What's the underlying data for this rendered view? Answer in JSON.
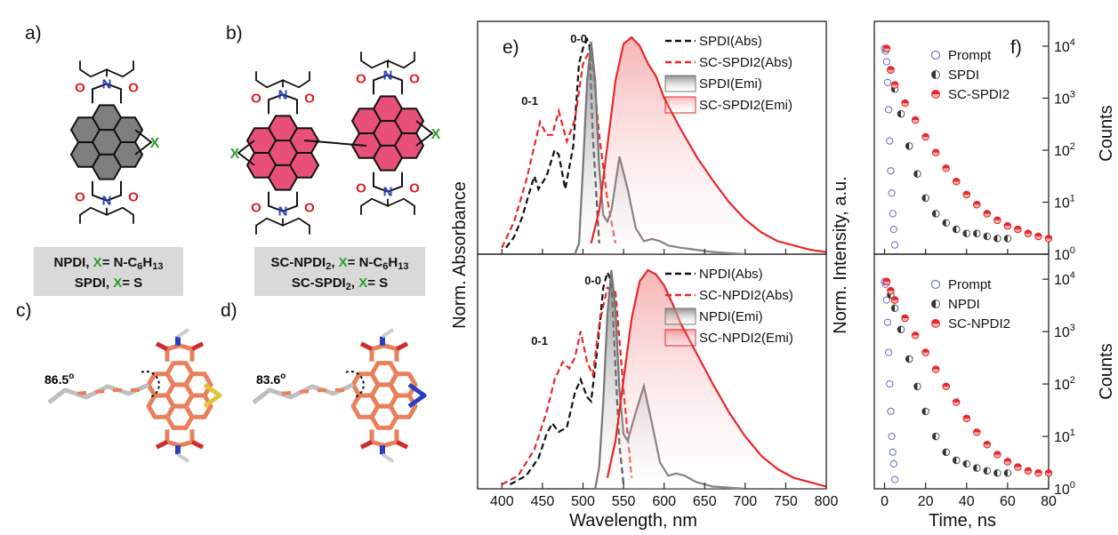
{
  "panel_labels": {
    "a": "a)",
    "b": "b)",
    "c": "c)",
    "d": "d)",
    "e": "e)",
    "f": "f)"
  },
  "structure_a": {
    "caption_1": "NPDI, X= N-C6H13",
    "caption_2": "SPDI, X= S",
    "x_label": "X"
  },
  "structure_b": {
    "caption_1": "SC-NPDI2, X= N-C6H13",
    "caption_2": "SC-SPDI2, X= S",
    "x_label": "X"
  },
  "model_c": {
    "angle": "86.5o"
  },
  "model_d": {
    "angle": "83.6o"
  },
  "colors": {
    "black": "#111111",
    "red": "#e8272b",
    "gray": "#8c8c8c",
    "bond_orange": "#e8805c",
    "core_gray": "#7f7f7f",
    "core_pink": "#e8507a",
    "nitrogen": "#2a3fbf",
    "oxygen": "#e01b1b",
    "x_green": "#2aa02a",
    "sulfur": "#e0c43a",
    "prompt_blue": "#6f78c9",
    "caption_bg": "#d9d9d9"
  },
  "chart_data": [
    {
      "type": "line",
      "panel": "e (top)",
      "xlim": [
        370,
        800
      ],
      "xlabel": "Wavelength, nm",
      "ylabel_left": "Norm. Absorbance",
      "ylabel_right": "Norm. Intensity, a.u.",
      "peak_labels": [
        "0-0",
        "0-1"
      ],
      "series": [
        {
          "name": "SPDI(Abs)",
          "style": "dash",
          "color": "#111111",
          "x": [
            405,
            415,
            425,
            435,
            440,
            445,
            455,
            465,
            470,
            478,
            488,
            495,
            500,
            505,
            508,
            512,
            516,
            520
          ],
          "y": [
            0.03,
            0.08,
            0.17,
            0.3,
            0.36,
            0.3,
            0.36,
            0.48,
            0.46,
            0.3,
            0.5,
            0.88,
            0.95,
            0.99,
            0.96,
            0.55,
            0.3,
            0.05
          ]
        },
        {
          "name": "SC-SPDI2(Abs)",
          "style": "dash",
          "color": "#e8272b",
          "x": [
            400,
            415,
            430,
            440,
            447,
            455,
            462,
            470,
            480,
            490,
            500,
            510,
            520,
            530,
            540
          ],
          "y": [
            0.03,
            0.15,
            0.34,
            0.5,
            0.61,
            0.55,
            0.55,
            0.66,
            0.52,
            0.62,
            0.88,
            0.95,
            0.55,
            0.25,
            0.05
          ]
        },
        {
          "name": "SPDI(Emi)",
          "style": "fill-gray",
          "color": "#8c8c8c",
          "x": [
            490,
            495,
            500,
            505,
            510,
            515,
            520,
            525,
            530,
            535,
            545,
            555,
            565,
            575,
            585,
            595,
            605,
            620,
            640,
            660,
            700
          ],
          "y": [
            0,
            0.05,
            0.4,
            0.8,
            0.98,
            0.8,
            0.4,
            0.18,
            0.15,
            0.2,
            0.45,
            0.3,
            0.12,
            0.06,
            0.07,
            0.06,
            0.04,
            0.03,
            0.02,
            0.01,
            0.0
          ]
        },
        {
          "name": "SC-SPDI2(Emi)",
          "style": "fill-red",
          "color": "#e8272b",
          "x": [
            510,
            520,
            530,
            540,
            550,
            560,
            570,
            580,
            590,
            600,
            620,
            640,
            660,
            680,
            700,
            720,
            740,
            760,
            780,
            800
          ],
          "y": [
            0.05,
            0.2,
            0.5,
            0.8,
            0.97,
            1.0,
            0.96,
            0.88,
            0.82,
            0.72,
            0.58,
            0.45,
            0.34,
            0.24,
            0.16,
            0.1,
            0.06,
            0.04,
            0.02,
            0.01
          ]
        }
      ]
    },
    {
      "type": "line",
      "panel": "e (bottom)",
      "xlim": [
        370,
        800
      ],
      "xticks": [
        400,
        450,
        500,
        550,
        600,
        650,
        700,
        750,
        800
      ],
      "xlabel": "Wavelength, nm",
      "peak_labels": [
        "0-0",
        "0-1"
      ],
      "series": [
        {
          "name": "NPDI(Abs)",
          "style": "dash",
          "color": "#111111",
          "x": [
            410,
            430,
            445,
            455,
            462,
            470,
            480,
            490,
            497,
            505,
            510,
            518,
            525,
            530,
            535,
            540,
            545,
            550
          ],
          "y": [
            0.02,
            0.06,
            0.14,
            0.25,
            0.3,
            0.26,
            0.28,
            0.44,
            0.5,
            0.42,
            0.4,
            0.65,
            0.92,
            0.99,
            0.95,
            0.55,
            0.2,
            0.02
          ]
        },
        {
          "name": "SC-NPDI2(Abs)",
          "style": "dash",
          "color": "#e8272b",
          "x": [
            400,
            420,
            440,
            455,
            465,
            475,
            483,
            490,
            497,
            505,
            512,
            520,
            530,
            540,
            550,
            560
          ],
          "y": [
            0.02,
            0.06,
            0.18,
            0.35,
            0.5,
            0.58,
            0.55,
            0.6,
            0.72,
            0.58,
            0.52,
            0.75,
            0.92,
            0.9,
            0.45,
            0.05
          ]
        },
        {
          "name": "NPDI(Emi)",
          "style": "fill-gray",
          "color": "#8c8c8c",
          "x": [
            515,
            520,
            525,
            530,
            535,
            540,
            545,
            550,
            555,
            565,
            575,
            585,
            595,
            605,
            615,
            625,
            640,
            660,
            700
          ],
          "y": [
            0,
            0.1,
            0.4,
            0.8,
            1.0,
            0.82,
            0.45,
            0.25,
            0.22,
            0.35,
            0.47,
            0.3,
            0.12,
            0.06,
            0.07,
            0.06,
            0.03,
            0.01,
            0.0
          ]
        },
        {
          "name": "SC-NPDI2(Emi)",
          "style": "fill-red",
          "color": "#e8272b",
          "x": [
            530,
            540,
            550,
            560,
            570,
            580,
            590,
            600,
            610,
            620,
            640,
            660,
            680,
            700,
            720,
            740,
            760,
            780,
            800
          ],
          "y": [
            0.05,
            0.22,
            0.5,
            0.78,
            0.95,
            1.0,
            0.98,
            0.93,
            0.85,
            0.76,
            0.62,
            0.48,
            0.35,
            0.24,
            0.15,
            0.09,
            0.05,
            0.03,
            0.01
          ]
        }
      ]
    },
    {
      "type": "scatter",
      "panel": "f (top)",
      "xlim": [
        -5,
        80
      ],
      "ylim": [
        1,
        30000
      ],
      "yscale": "log",
      "yticks": [
        "10^0",
        "10^1",
        "10^2",
        "10^3",
        "10^4"
      ],
      "ylabel": "Counts",
      "series": [
        {
          "name": "Prompt",
          "marker": "open-circle",
          "color": "#6f78c9",
          "x": [
            0,
            0.5,
            1,
            1.5,
            2,
            2.5,
            3,
            3.5,
            4,
            4.5,
            5
          ],
          "y": [
            9000,
            8000,
            5000,
            2000,
            600,
            150,
            40,
            15,
            6,
            3,
            1.5
          ]
        },
        {
          "name": "SPDI",
          "marker": "half-filled",
          "color": "#333333",
          "x": [
            1,
            3,
            5,
            8,
            12,
            16,
            20,
            25,
            30,
            35,
            40,
            45,
            50,
            55,
            60
          ],
          "y": [
            9000,
            3500,
            1500,
            500,
            120,
            35,
            12,
            6,
            4,
            3,
            2.5,
            2.5,
            2.2,
            2.0,
            2.0
          ]
        },
        {
          "name": "SC-SPDI2",
          "marker": "half-red",
          "color": "#e8272b",
          "x": [
            1,
            3,
            5,
            10,
            15,
            20,
            25,
            30,
            35,
            40,
            45,
            50,
            55,
            60,
            65,
            70,
            75,
            80
          ],
          "y": [
            9000,
            3500,
            1800,
            800,
            380,
            180,
            90,
            45,
            25,
            14,
            9,
            6,
            4.5,
            3.5,
            3,
            2.5,
            2.2,
            2
          ]
        }
      ]
    },
    {
      "type": "scatter",
      "panel": "f (bottom)",
      "xlim": [
        -5,
        80
      ],
      "xticks": [
        0,
        20,
        40,
        60,
        80
      ],
      "ylim": [
        1,
        30000
      ],
      "yscale": "log",
      "yticks": [
        "10^0",
        "10^1",
        "10^2",
        "10^3",
        "10^4"
      ],
      "xlabel": "Time, ns",
      "ylabel": "Counts",
      "series": [
        {
          "name": "Prompt",
          "marker": "open-circle",
          "color": "#6f78c9",
          "x": [
            0,
            0.5,
            1,
            1.5,
            2,
            2.5,
            3,
            3.5,
            4,
            4.5,
            5
          ],
          "y": [
            9000,
            8000,
            4000,
            1500,
            400,
            100,
            30,
            10,
            5,
            3,
            1.5
          ]
        },
        {
          "name": "NPDI",
          "marker": "half-filled",
          "color": "#333333",
          "x": [
            1,
            3,
            5,
            8,
            12,
            16,
            20,
            25,
            30,
            35,
            40,
            45,
            50,
            55,
            60
          ],
          "y": [
            9000,
            5000,
            2800,
            1100,
            300,
            90,
            30,
            10,
            5,
            3.5,
            3,
            2.5,
            2.2,
            2,
            2
          ]
        },
        {
          "name": "SC-NPDI2",
          "marker": "half-red",
          "color": "#e8272b",
          "x": [
            1,
            3,
            5,
            10,
            15,
            20,
            25,
            30,
            35,
            40,
            45,
            50,
            55,
            60,
            65,
            70,
            75,
            80
          ],
          "y": [
            9000,
            6000,
            4000,
            1800,
            850,
            400,
            190,
            90,
            45,
            22,
            12,
            7,
            4.5,
            3.3,
            2.6,
            2.2,
            2,
            2
          ]
        }
      ]
    }
  ]
}
